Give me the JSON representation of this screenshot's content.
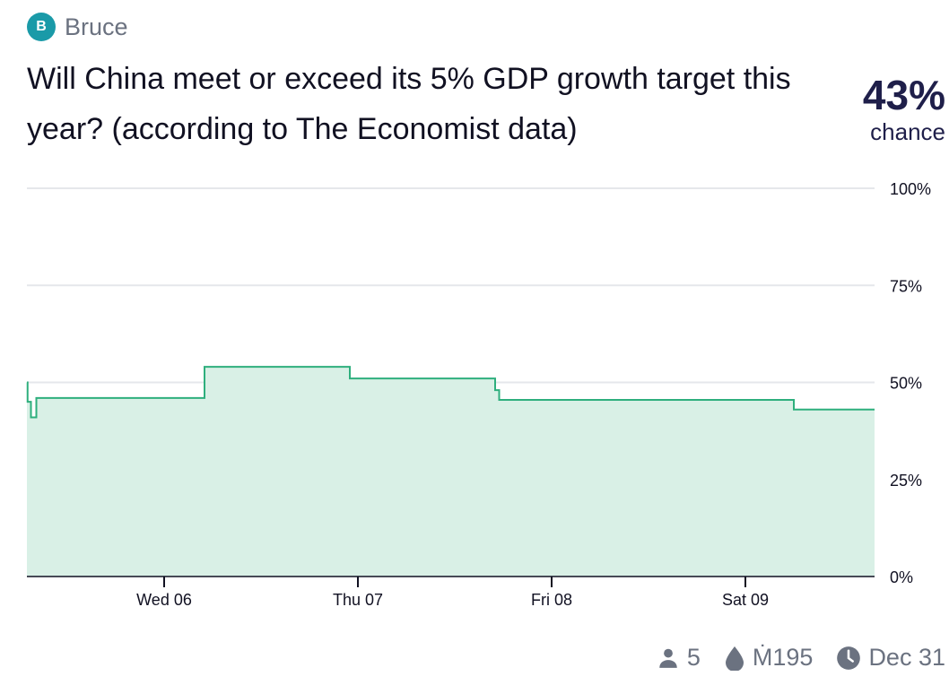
{
  "creator": {
    "initial": "B",
    "name": "Bruce"
  },
  "question": "Will China meet or exceed its 5% GDP growth target this year? (according to The Economist data)",
  "probability": {
    "value": "43%",
    "label": "chance"
  },
  "colors": {
    "line": "#2eaf7d",
    "fill": "#d9f0e6",
    "grid": "#e5e7eb",
    "avatar": "#1a9aa8"
  },
  "chart_data": {
    "type": "area",
    "x_axis": {
      "range": [
        "2023-12-05T07:00",
        "2023-12-09T16:00"
      ],
      "ticks": [
        {
          "t": "2023-12-06T00:00",
          "label": "Wed 06"
        },
        {
          "t": "2023-12-07T00:00",
          "label": "Thu 07"
        },
        {
          "t": "2023-12-08T00:00",
          "label": "Fri 08"
        },
        {
          "t": "2023-12-09T00:00",
          "label": "Sat 09"
        }
      ]
    },
    "y_axis": {
      "range": [
        0,
        100
      ],
      "ticks": [
        0,
        25,
        50,
        75,
        100
      ],
      "tick_labels": [
        "0%",
        "25%",
        "50%",
        "75%",
        "100%"
      ]
    },
    "series": [
      {
        "step": true,
        "points": [
          {
            "t": "2023-12-05T07:00",
            "y": 50
          },
          {
            "t": "2023-12-05T07:05",
            "y": 45
          },
          {
            "t": "2023-12-05T07:30",
            "y": 41
          },
          {
            "t": "2023-12-05T08:10",
            "y": 46
          },
          {
            "t": "2023-12-06T05:00",
            "y": 54
          },
          {
            "t": "2023-12-06T23:00",
            "y": 51
          },
          {
            "t": "2023-12-07T17:00",
            "y": 48
          },
          {
            "t": "2023-12-07T17:30",
            "y": 45.5
          },
          {
            "t": "2023-12-09T06:00",
            "y": 43
          },
          {
            "t": "2023-12-09T16:00",
            "y": 43
          }
        ]
      }
    ],
    "grid": true
  },
  "footer": {
    "traders": "5",
    "volume": "Ṁ195",
    "close_date": "Dec 31"
  }
}
